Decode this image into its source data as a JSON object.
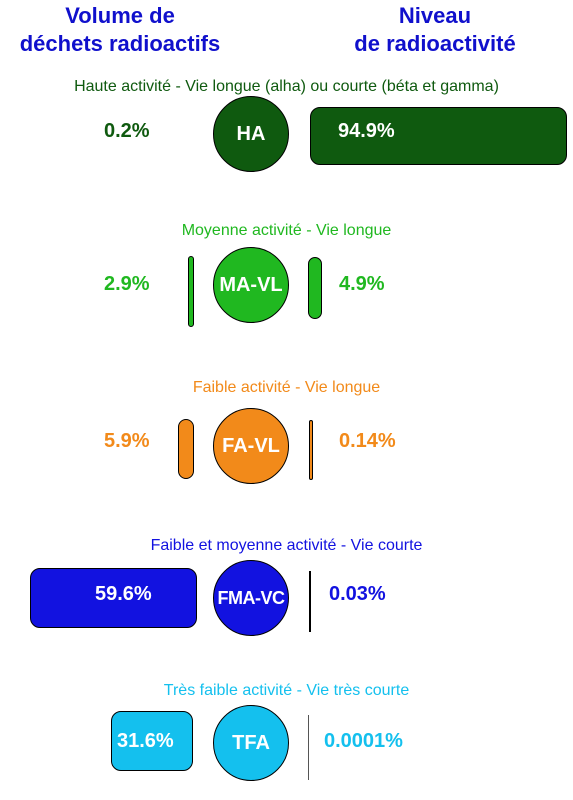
{
  "headers": {
    "left": "Volume de\ndéchets radioactifs",
    "right": "Niveau\nde radioactivité"
  },
  "colors": {
    "ha": "#0f5a0f",
    "ma_vl": "#20b820",
    "fa_vl": "#f28a1a",
    "fma_vc": "#1212e0",
    "tfa": "#14c0ee",
    "header": "#1010cc"
  },
  "rows": [
    {
      "key": "ha",
      "category": "Haute activité - Vie longue (alha) ou courte (béta et gamma)",
      "abbr": "HA",
      "volume": "0.2%",
      "radioactivity": "94.9%"
    },
    {
      "key": "ma_vl",
      "category": "Moyenne activité - Vie longue",
      "abbr": "MA-VL",
      "volume": "2.9%",
      "radioactivity": "4.9%"
    },
    {
      "key": "fa_vl",
      "category": "Faible activité - Vie longue",
      "abbr": "FA-VL",
      "volume": "5.9%",
      "radioactivity": "0.14%"
    },
    {
      "key": "fma_vc",
      "category": "Faible et moyenne activité - Vie courte",
      "abbr": "FMA-VC",
      "volume": "59.6%",
      "radioactivity": "0.03%"
    },
    {
      "key": "tfa",
      "category": "Très faible activité - Vie très courte",
      "abbr": "TFA",
      "volume": "31.6%",
      "radioactivity": "0.0001%"
    }
  ]
}
